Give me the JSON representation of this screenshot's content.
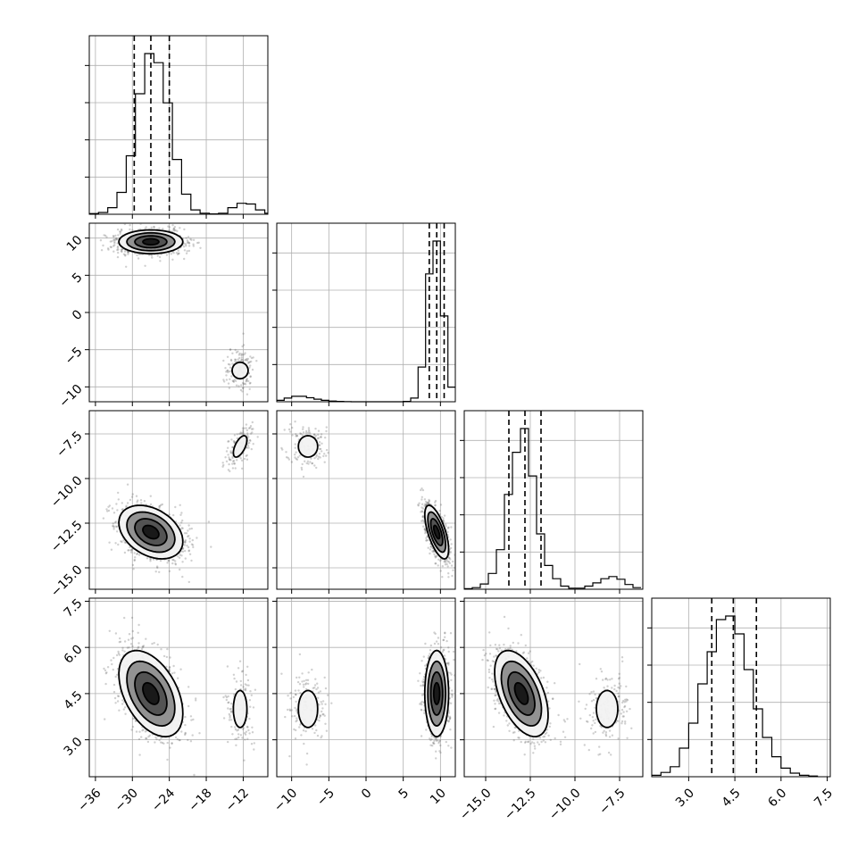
{
  "chart_data": {
    "type": "corner",
    "parameters": [
      "p0",
      "p1",
      "p2",
      "p3"
    ],
    "axes": {
      "p0": {
        "lim": [
          -37,
          -8
        ],
        "ticks": [
          -36,
          -30,
          -24,
          -18,
          -12
        ],
        "tick_labels": [
          "−36",
          "−30",
          "−24",
          "−18",
          "−12"
        ]
      },
      "p1": {
        "lim": [
          -12,
          12
        ],
        "ticks": [
          -10,
          -5,
          0,
          5,
          10
        ],
        "tick_labels": [
          "−10",
          "−5",
          "0",
          "5",
          "10"
        ]
      },
      "p2": {
        "lim": [
          -16.2,
          -6.2
        ],
        "ticks": [
          -15.0,
          -12.5,
          -10.0,
          -7.5
        ],
        "tick_labels": [
          "−15.0",
          "−12.5",
          "−10.0",
          "−7.5"
        ]
      },
      "p3": {
        "lim": [
          1.8,
          7.6
        ],
        "ticks": [
          3.0,
          4.5,
          6.0,
          7.5
        ],
        "tick_labels": [
          "3.0",
          "4.5",
          "6.0",
          "7.5"
        ]
      }
    },
    "modes": [
      {
        "weight": 0.87,
        "mean": [
          -27,
          9.5,
          -13.0,
          4.5
        ],
        "sd": [
          2.6,
          0.8,
          0.75,
          0.7
        ]
      },
      {
        "weight": 0.13,
        "mean": [
          -12.5,
          -7.8,
          -8.2,
          4.0
        ],
        "sd": [
          1.1,
          1.3,
          0.6,
          0.6
        ]
      }
    ],
    "histograms": [
      {
        "param": "p0",
        "bins": [
          -37,
          -35.5,
          -34,
          -32.5,
          -31,
          -29.5,
          -28,
          -26.5,
          -25,
          -23.5,
          -22,
          -20.5,
          -19,
          -17.5,
          -16,
          -14.5,
          -13,
          -11.5,
          -10,
          -8.5,
          -7
        ],
        "counts": [
          2,
          5,
          18,
          60,
          160,
          330,
          440,
          415,
          305,
          150,
          55,
          12,
          3,
          1,
          3,
          18,
          30,
          28,
          12,
          3
        ],
        "quantiles": [
          -29.7,
          -27.0,
          -24.0
        ]
      },
      {
        "param": "p1",
        "bins": [
          -12,
          -11,
          -10,
          -9,
          -8,
          -7,
          -6,
          -5,
          -4,
          -3,
          -2,
          -1,
          0,
          1,
          2,
          3,
          4,
          5,
          6,
          7,
          8,
          9,
          10,
          11,
          12
        ],
        "counts": [
          8,
          20,
          30,
          30,
          22,
          14,
          8,
          4,
          2,
          1,
          0,
          0,
          0,
          0,
          0,
          0,
          0,
          2,
          20,
          190,
          700,
          880,
          470,
          80
        ],
        "quantiles": [
          8.5,
          9.5,
          10.5
        ]
      },
      {
        "param": "p2",
        "bins": [
          -16.2,
          -15.75,
          -15.3,
          -14.85,
          -14.4,
          -13.95,
          -13.5,
          -13.05,
          -12.6,
          -12.15,
          -11.7,
          -11.25,
          -10.8,
          -10.35,
          -9.9,
          -9.45,
          -9.0,
          -8.55,
          -8.1,
          -7.65,
          -7.2,
          -6.75,
          -6.3
        ],
        "counts": [
          2,
          6,
          20,
          60,
          150,
          360,
          520,
          610,
          430,
          210,
          90,
          40,
          12,
          4,
          4,
          12,
          24,
          40,
          48,
          38,
          18,
          6
        ],
        "quantiles": [
          -13.7,
          -12.8,
          -11.9
        ]
      },
      {
        "param": "p3",
        "bins": [
          1.8,
          2.1,
          2.4,
          2.7,
          3.0,
          3.3,
          3.6,
          3.9,
          4.2,
          4.5,
          4.8,
          5.1,
          5.4,
          5.7,
          6.0,
          6.3,
          6.6,
          6.9,
          7.2
        ],
        "counts": [
          2,
          6,
          14,
          40,
          75,
          130,
          175,
          220,
          225,
          200,
          150,
          95,
          55,
          28,
          12,
          5,
          2,
          1
        ],
        "quantiles": [
          3.75,
          4.45,
          5.2
        ]
      }
    ],
    "scatter_points_per_panel": 1300,
    "contour_levels_sigma": [
      0.5,
      1.0,
      1.5,
      2.0
    ],
    "grid": true
  }
}
